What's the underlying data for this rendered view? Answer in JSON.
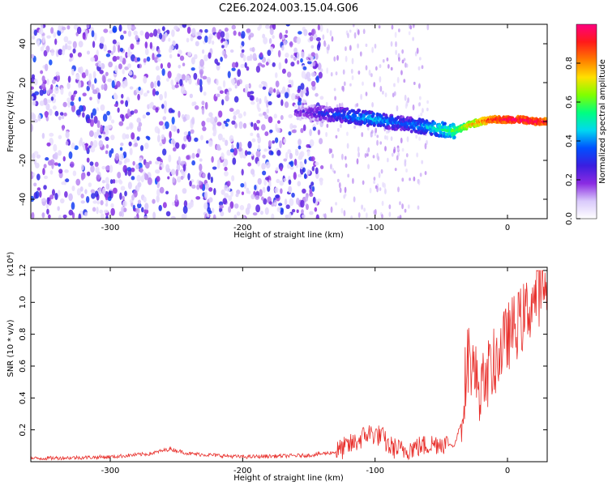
{
  "title": "C2E6.2024.003.15.04.G06",
  "colors": {
    "background": "#ffffff",
    "snr_line": "#e8302c",
    "colormap": [
      "#ffffff",
      "#d9c9fb",
      "#8a2be2",
      "#3b1ee0",
      "#0050ff",
      "#00d8f0",
      "#00ff80",
      "#80ff00",
      "#ffe000",
      "#ff7a00",
      "#ff1a1a",
      "#ff007f"
    ]
  },
  "chart_data": [
    {
      "type": "heatmap",
      "xlabel": "Height of straight line (km)",
      "ylabel": "Frequency (Hz)",
      "xlim": [
        -360,
        30
      ],
      "ylim": [
        -50,
        50
      ],
      "x_ticks": [
        -300,
        -200,
        -100,
        0
      ],
      "x_tick_labels": [
        "-300",
        "-200",
        "-100",
        "0"
      ],
      "y_ticks": [
        -40,
        -20,
        0,
        20,
        40
      ],
      "y_tick_labels": [
        "-40",
        "-20",
        "0",
        "20",
        "40"
      ],
      "colorbar": {
        "label": "Normalized spectral amplitude",
        "range": [
          0,
          1
        ],
        "ticks": [
          0.0,
          0.2,
          0.4,
          0.6,
          0.8
        ],
        "tick_labels": [
          "0.0",
          "0.2",
          "0.4",
          "0.6",
          "0.8"
        ]
      },
      "ridge": {
        "height_km": [
          -160,
          -140,
          -120,
          -100,
          -80,
          -60,
          -40,
          -30,
          -20,
          -10,
          0,
          10,
          20,
          30
        ],
        "frequency_hz": [
          5,
          4,
          3,
          1,
          -1,
          -3,
          -5,
          -2,
          0,
          1,
          1,
          1,
          0,
          0
        ],
        "normalized_amplitude": [
          0.2,
          0.3,
          0.4,
          0.45,
          0.35,
          0.45,
          0.6,
          0.75,
          0.85,
          0.95,
          1.0,
          1.0,
          1.0,
          0.95
        ]
      },
      "noise_region": {
        "height_km": [
          -360,
          -140
        ],
        "frequency_hz": [
          -50,
          50
        ],
        "normalized_amplitude": [
          0.05,
          0.35
        ]
      }
    },
    {
      "type": "line",
      "xlabel": "Height of straight line (km)",
      "ylabel": "SNR (10 * v/v)",
      "y_scale_label": "(x10⁴)",
      "xlim": [
        -360,
        30
      ],
      "ylim": [
        0,
        1.22
      ],
      "x_ticks": [
        -300,
        -200,
        -100,
        0
      ],
      "x_tick_labels": [
        "-300",
        "-200",
        "-100",
        "0"
      ],
      "y_ticks": [
        0.2,
        0.4,
        0.6,
        0.8,
        1.0,
        1.2
      ],
      "y_tick_labels": [
        "0.2",
        "0.4",
        "0.6",
        "0.8",
        "1.0",
        "1.2"
      ],
      "series": [
        {
          "x": [
            -360,
            -300,
            -270,
            -255,
            -240,
            -200,
            -150,
            -130,
            -115,
            -105,
            -95,
            -90,
            -80,
            -70,
            -50,
            -40,
            -35,
            -30,
            -25,
            -20,
            -15,
            -10,
            -5,
            0,
            5,
            10,
            15,
            20,
            25,
            30
          ],
          "y": [
            0.02,
            0.03,
            0.05,
            0.08,
            0.05,
            0.03,
            0.04,
            0.06,
            0.12,
            0.18,
            0.16,
            0.1,
            0.07,
            0.09,
            0.12,
            0.1,
            0.25,
            0.7,
            0.55,
            0.45,
            0.55,
            0.62,
            0.7,
            0.78,
            0.84,
            0.88,
            0.95,
            1.02,
            1.08,
            1.12
          ]
        }
      ]
    }
  ]
}
